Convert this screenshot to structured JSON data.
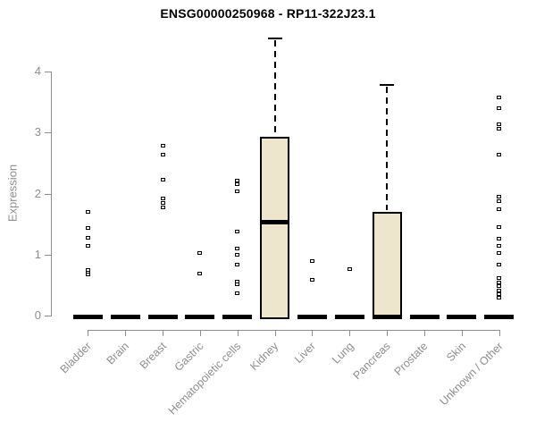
{
  "chart_data": {
    "type": "boxplot",
    "title": "ENSG00000250968 - RP11-322J23.1",
    "ylabel": "Expression",
    "xlabel": "",
    "ylim": [
      0,
      4.6
    ],
    "yticks": [
      0,
      1,
      2,
      3,
      4
    ],
    "grid": false,
    "legend": "none",
    "box_fill_color": "#ede6cd",
    "axis_color": "#8e8e8e",
    "categories": [
      "Bladder",
      "Brain",
      "Breast",
      "Gastric",
      "Hematopoietic cells",
      "Kidney",
      "Liver",
      "Lung",
      "Pancreas",
      "Prostate",
      "Skin",
      "Unknown / Other"
    ],
    "series": [
      {
        "category": "Bladder",
        "q1": 0,
        "median": 0,
        "q3": 0,
        "whisker_low": 0,
        "whisker_high": 0,
        "outliers": [
          1.7,
          1.43,
          1.28,
          1.14,
          0.75,
          0.71,
          0.68
        ]
      },
      {
        "category": "Brain",
        "q1": 0,
        "median": 0,
        "q3": 0,
        "whisker_low": 0,
        "whisker_high": 0,
        "outliers": []
      },
      {
        "category": "Breast",
        "q1": 0,
        "median": 0,
        "q3": 0,
        "whisker_low": 0,
        "whisker_high": 0,
        "outliers": [
          2.79,
          2.64,
          2.23,
          1.92,
          1.85,
          1.78
        ]
      },
      {
        "category": "Gastric",
        "q1": 0,
        "median": 0,
        "q3": 0,
        "whisker_low": 0,
        "whisker_high": 0,
        "outliers": [
          1.03,
          0.69
        ]
      },
      {
        "category": "Hematopoietic cells",
        "q1": 0,
        "median": 0,
        "q3": 0,
        "whisker_low": 0,
        "whisker_high": 0,
        "outliers": [
          2.21,
          2.15,
          2.04,
          1.37,
          1.1,
          1.0,
          0.84,
          0.56,
          0.51,
          0.36
        ]
      },
      {
        "category": "Kidney",
        "q1": 0,
        "median": 1.56,
        "q3": 2.93,
        "whisker_low": 0,
        "whisker_high": 4.54,
        "outliers": []
      },
      {
        "category": "Liver",
        "q1": 0,
        "median": 0,
        "q3": 0,
        "whisker_low": 0,
        "whisker_high": 0,
        "outliers": [
          0.89,
          0.59
        ]
      },
      {
        "category": "Lung",
        "q1": 0,
        "median": 0,
        "q3": 0,
        "whisker_low": 0,
        "whisker_high": 0,
        "outliers": [
          0.76
        ]
      },
      {
        "category": "Pancreas",
        "q1": 0,
        "median": 0,
        "q3": 1.7,
        "whisker_low": 0,
        "whisker_high": 3.78,
        "outliers": []
      },
      {
        "category": "Prostate",
        "q1": 0,
        "median": 0,
        "q3": 0,
        "whisker_low": 0,
        "whisker_high": 0,
        "outliers": []
      },
      {
        "category": "Skin",
        "q1": 0,
        "median": 0,
        "q3": 0,
        "whisker_low": 0,
        "whisker_high": 0,
        "outliers": []
      },
      {
        "category": "Unknown / Other",
        "q1": 0,
        "median": 0,
        "q3": 0,
        "whisker_low": 0,
        "whisker_high": 0,
        "outliers": [
          3.58,
          3.4,
          3.13,
          3.06,
          2.64,
          1.95,
          1.87,
          1.74,
          1.45,
          1.26,
          1.14,
          1.03,
          0.83,
          0.61,
          0.54,
          0.48,
          0.41,
          0.35,
          0.3
        ]
      }
    ]
  }
}
